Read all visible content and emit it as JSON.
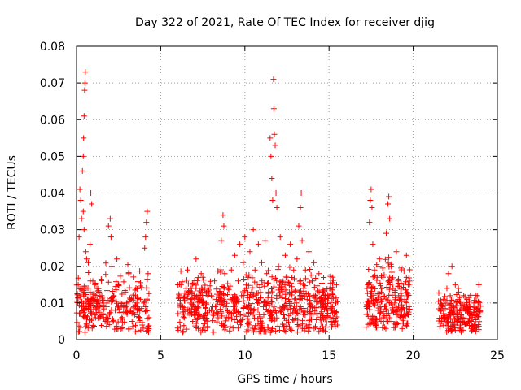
{
  "chart_data": {
    "type": "scatter",
    "title": "Day 322 of 2021, Rate Of TEC Index for receiver djig",
    "xlabel": "GPS time / hours",
    "ylabel": "ROTI / TECUs",
    "xlim": [
      0,
      25
    ],
    "ylim": [
      0,
      0.08
    ],
    "xticks": [
      0,
      5,
      10,
      15,
      20,
      25
    ],
    "xtick_labels": [
      "0",
      "5",
      "10",
      "15",
      "20",
      "25"
    ],
    "yticks": [
      0,
      0.01,
      0.02,
      0.03,
      0.04,
      0.05,
      0.06,
      0.07,
      0.08
    ],
    "ytick_labels": [
      "0",
      "0.01",
      "0.02",
      "0.03",
      "0.04",
      "0.05",
      "0.06",
      "0.07",
      "0.08"
    ],
    "grid": true,
    "marker": "+",
    "color": "#ff0000",
    "series": [
      {
        "name": "ROTI",
        "points": [
          [
            0.1,
            0.015
          ],
          [
            0.15,
            0.028
          ],
          [
            0.2,
            0.041
          ],
          [
            0.25,
            0.038
          ],
          [
            0.3,
            0.033
          ],
          [
            0.35,
            0.046
          ],
          [
            0.4,
            0.05
          ],
          [
            0.42,
            0.055
          ],
          [
            0.45,
            0.061
          ],
          [
            0.48,
            0.068
          ],
          [
            0.5,
            0.07
          ],
          [
            0.52,
            0.073
          ],
          [
            0.4,
            0.035
          ],
          [
            0.45,
            0.03
          ],
          [
            0.55,
            0.024
          ],
          [
            0.6,
            0.022
          ],
          [
            0.7,
            0.021
          ],
          [
            0.8,
            0.026
          ],
          [
            0.85,
            0.04
          ],
          [
            0.9,
            0.037
          ],
          [
            0.2,
            0.012
          ],
          [
            0.3,
            0.009
          ],
          [
            0.4,
            0.008
          ],
          [
            0.5,
            0.006
          ],
          [
            0.6,
            0.004
          ],
          [
            0.7,
            0.01
          ],
          [
            0.8,
            0.013
          ],
          [
            0.9,
            0.007
          ],
          [
            1.0,
            0.011
          ],
          [
            1.1,
            0.015
          ],
          [
            1.2,
            0.009
          ],
          [
            1.3,
            0.008
          ],
          [
            1.4,
            0.006
          ],
          [
            1.5,
            0.012
          ],
          [
            1.6,
            0.01
          ],
          [
            1.7,
            0.005
          ],
          [
            1.8,
            0.009
          ],
          [
            1.9,
            0.031
          ],
          [
            2.0,
            0.033
          ],
          [
            2.05,
            0.028
          ],
          [
            2.1,
            0.02
          ],
          [
            2.2,
            0.012
          ],
          [
            2.3,
            0.008
          ],
          [
            2.4,
            0.022
          ],
          [
            2.5,
            0.015
          ],
          [
            2.6,
            0.01
          ],
          [
            2.7,
            0.006
          ],
          [
            2.8,
            0.009
          ],
          [
            2.9,
            0.013
          ],
          [
            3.0,
            0.007
          ],
          [
            3.1,
            0.018
          ],
          [
            3.2,
            0.011
          ],
          [
            3.3,
            0.005
          ],
          [
            3.4,
            0.009
          ],
          [
            3.5,
            0.012
          ],
          [
            3.6,
            0.008
          ],
          [
            3.7,
            0.006
          ],
          [
            3.8,
            0.011
          ],
          [
            3.9,
            0.004
          ],
          [
            4.0,
            0.01
          ],
          [
            4.05,
            0.025
          ],
          [
            4.1,
            0.028
          ],
          [
            4.15,
            0.032
          ],
          [
            4.2,
            0.035
          ],
          [
            4.25,
            0.018
          ],
          [
            4.3,
            0.006
          ],
          [
            4.3,
            0.003
          ],
          [
            6.1,
            0.012
          ],
          [
            6.2,
            0.015
          ],
          [
            6.3,
            0.009
          ],
          [
            6.4,
            0.006
          ],
          [
            6.5,
            0.014
          ],
          [
            6.6,
            0.019
          ],
          [
            6.7,
            0.008
          ],
          [
            6.8,
            0.011
          ],
          [
            6.9,
            0.005
          ],
          [
            7.0,
            0.012
          ],
          [
            7.1,
            0.022
          ],
          [
            7.2,
            0.009
          ],
          [
            7.3,
            0.007
          ],
          [
            7.4,
            0.013
          ],
          [
            7.5,
            0.017
          ],
          [
            7.6,
            0.006
          ],
          [
            7.7,
            0.01
          ],
          [
            7.8,
            0.014
          ],
          [
            7.9,
            0.008
          ],
          [
            8.0,
            0.012
          ],
          [
            8.1,
            0.009
          ],
          [
            8.2,
            0.016
          ],
          [
            8.3,
            0.011
          ],
          [
            8.4,
            0.007
          ],
          [
            8.5,
            0.013
          ],
          [
            8.6,
            0.027
          ],
          [
            8.7,
            0.034
          ],
          [
            8.75,
            0.031
          ],
          [
            8.8,
            0.018
          ],
          [
            8.9,
            0.009
          ],
          [
            9.0,
            0.014
          ],
          [
            9.1,
            0.006
          ],
          [
            9.2,
            0.019
          ],
          [
            9.3,
            0.011
          ],
          [
            9.4,
            0.023
          ],
          [
            9.5,
            0.008
          ],
          [
            9.6,
            0.016
          ],
          [
            9.7,
            0.026
          ],
          [
            9.8,
            0.012
          ],
          [
            9.9,
            0.021
          ],
          [
            10.0,
            0.028
          ],
          [
            10.1,
            0.009
          ],
          [
            10.2,
            0.017
          ],
          [
            10.3,
            0.024
          ],
          [
            10.4,
            0.013
          ],
          [
            10.5,
            0.03
          ],
          [
            10.6,
            0.019
          ],
          [
            10.7,
            0.011
          ],
          [
            10.8,
            0.026
          ],
          [
            10.9,
            0.015
          ],
          [
            11.0,
            0.021
          ],
          [
            11.1,
            0.009
          ],
          [
            11.2,
            0.027
          ],
          [
            11.3,
            0.018
          ],
          [
            11.4,
            0.013
          ],
          [
            11.5,
            0.055
          ],
          [
            11.55,
            0.05
          ],
          [
            11.6,
            0.044
          ],
          [
            11.65,
            0.038
          ],
          [
            11.7,
            0.071
          ],
          [
            11.72,
            0.063
          ],
          [
            11.75,
            0.056
          ],
          [
            11.8,
            0.053
          ],
          [
            11.85,
            0.04
          ],
          [
            11.9,
            0.036
          ],
          [
            12.0,
            0.02
          ],
          [
            12.1,
            0.028
          ],
          [
            12.2,
            0.014
          ],
          [
            12.3,
            0.009
          ],
          [
            12.4,
            0.023
          ],
          [
            12.5,
            0.017
          ],
          [
            12.6,
            0.011
          ],
          [
            12.7,
            0.026
          ],
          [
            12.8,
            0.013
          ],
          [
            12.9,
            0.019
          ],
          [
            13.0,
            0.008
          ],
          [
            13.1,
            0.022
          ],
          [
            13.2,
            0.031
          ],
          [
            13.3,
            0.036
          ],
          [
            13.35,
            0.04
          ],
          [
            13.4,
            0.027
          ],
          [
            13.5,
            0.014
          ],
          [
            13.6,
            0.019
          ],
          [
            13.7,
            0.011
          ],
          [
            13.8,
            0.024
          ],
          [
            13.9,
            0.009
          ],
          [
            14.0,
            0.016
          ],
          [
            14.1,
            0.021
          ],
          [
            14.2,
            0.012
          ],
          [
            14.3,
            0.007
          ],
          [
            14.4,
            0.018
          ],
          [
            14.5,
            0.01
          ],
          [
            14.6,
            0.013
          ],
          [
            14.7,
            0.006
          ],
          [
            14.8,
            0.011
          ],
          [
            14.9,
            0.008
          ],
          [
            15.0,
            0.012
          ],
          [
            15.1,
            0.005
          ],
          [
            15.2,
            0.009
          ],
          [
            15.3,
            0.007
          ],
          [
            15.4,
            0.01
          ],
          [
            15.5,
            0.004
          ],
          [
            17.3,
            0.015
          ],
          [
            17.4,
            0.032
          ],
          [
            17.45,
            0.038
          ],
          [
            17.5,
            0.041
          ],
          [
            17.55,
            0.036
          ],
          [
            17.6,
            0.026
          ],
          [
            17.7,
            0.019
          ],
          [
            17.8,
            0.011
          ],
          [
            17.9,
            0.008
          ],
          [
            18.0,
            0.022
          ],
          [
            18.1,
            0.013
          ],
          [
            18.2,
            0.017
          ],
          [
            18.3,
            0.009
          ],
          [
            18.4,
            0.029
          ],
          [
            18.5,
            0.037
          ],
          [
            18.55,
            0.039
          ],
          [
            18.6,
            0.033
          ],
          [
            18.7,
            0.02
          ],
          [
            18.8,
            0.014
          ],
          [
            18.9,
            0.01
          ],
          [
            19.0,
            0.024
          ],
          [
            19.1,
            0.016
          ],
          [
            19.2,
            0.008
          ],
          [
            19.3,
            0.012
          ],
          [
            19.4,
            0.006
          ],
          [
            19.5,
            0.011
          ],
          [
            19.6,
            0.023
          ],
          [
            19.7,
            0.015
          ],
          [
            19.75,
            0.009
          ],
          [
            21.6,
            0.008
          ],
          [
            21.7,
            0.005
          ],
          [
            21.8,
            0.011
          ],
          [
            21.9,
            0.006
          ],
          [
            22.0,
            0.014
          ],
          [
            22.1,
            0.018
          ],
          [
            22.2,
            0.012
          ],
          [
            22.3,
            0.02
          ],
          [
            22.4,
            0.009
          ],
          [
            22.5,
            0.015
          ],
          [
            22.6,
            0.007
          ],
          [
            22.7,
            0.013
          ],
          [
            22.8,
            0.01
          ],
          [
            22.9,
            0.006
          ],
          [
            23.0,
            0.012
          ],
          [
            23.1,
            0.008
          ],
          [
            23.2,
            0.011
          ],
          [
            23.3,
            0.005
          ],
          [
            23.4,
            0.009
          ],
          [
            23.5,
            0.007
          ],
          [
            23.6,
            0.01
          ],
          [
            23.7,
            0.004
          ],
          [
            23.8,
            0.012
          ],
          [
            23.9,
            0.015
          ],
          [
            23.95,
            0.008
          ]
        ],
        "clusters": [
          {
            "x": [
              0.0,
              4.3
            ],
            "y_mean": 0.009,
            "y_spread": 0.006,
            "y_min": 0.002,
            "count": 260
          },
          {
            "x": [
              6.0,
              15.5
            ],
            "y_mean": 0.009,
            "y_spread": 0.006,
            "y_min": 0.002,
            "count": 640
          },
          {
            "x": [
              17.2,
              19.8
            ],
            "y_mean": 0.01,
            "y_spread": 0.007,
            "y_min": 0.003,
            "count": 220
          },
          {
            "x": [
              21.5,
              24.0
            ],
            "y_mean": 0.007,
            "y_spread": 0.004,
            "y_min": 0.002,
            "count": 200
          }
        ]
      }
    ]
  }
}
